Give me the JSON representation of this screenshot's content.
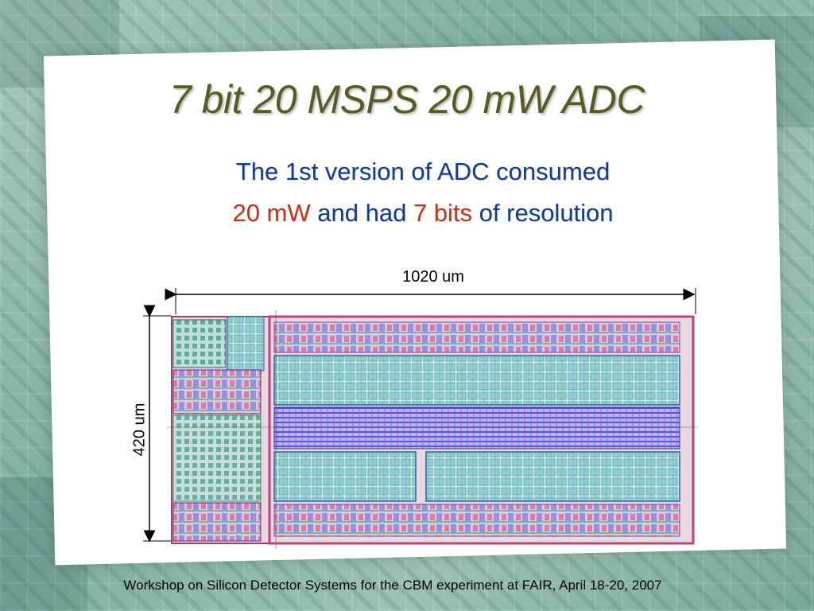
{
  "slide": {
    "title": "7 bit 20 MSPS 20 mW ADC",
    "subtitle_line1": "The 1st version of ADC consumed",
    "subtitle_line2_parts": {
      "power": "20 mW",
      "mid": " and had ",
      "bits": "7 bits",
      "end": " of resolution"
    },
    "width_label": "1020 um",
    "height_label": "420 um",
    "footer": "Workshop on Silicon Detector Systems for the CBM experiment at FAIR, April 18-20, 2007"
  },
  "colors": {
    "title": "#5a5a24",
    "subtitle": "#143c8c",
    "highlight": "#c0361a",
    "chip_cells": "#7fc9c9",
    "chip_wires": "#3040d0"
  }
}
